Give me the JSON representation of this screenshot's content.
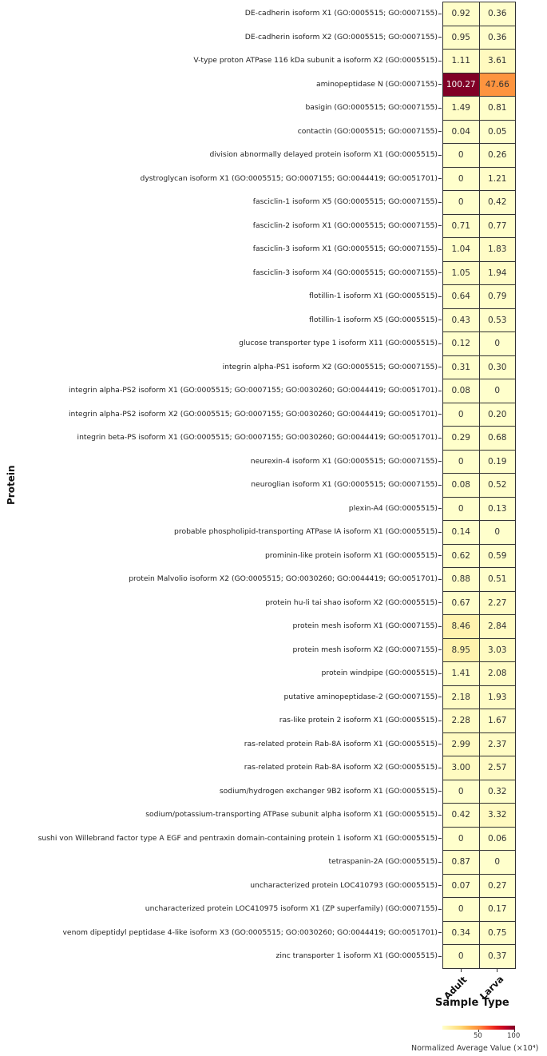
{
  "chart_data": {
    "type": "heatmap",
    "title": "",
    "xlabel": "Sample Type",
    "ylabel": "Protein",
    "columns": [
      "Adult",
      "Larva"
    ],
    "rows": [
      {
        "protein": "DE-cadherin isoform X1 (GO:0005515; GO:0007155)",
        "values": [
          "0.92",
          "0.36"
        ]
      },
      {
        "protein": "DE-cadherin isoform X2 (GO:0005515; GO:0007155)",
        "values": [
          "0.95",
          "0.36"
        ]
      },
      {
        "protein": "V-type proton ATPase 116 kDa subunit a isoform X2 (GO:0005515)",
        "values": [
          "1.11",
          "3.61"
        ]
      },
      {
        "protein": "aminopeptidase N (GO:0007155)",
        "values": [
          "100.27",
          "47.66"
        ]
      },
      {
        "protein": "basigin (GO:0005515; GO:0007155)",
        "values": [
          "1.49",
          "0.81"
        ]
      },
      {
        "protein": "contactin (GO:0005515; GO:0007155)",
        "values": [
          "0.04",
          "0.05"
        ]
      },
      {
        "protein": "division abnormally delayed protein isoform X1 (GO:0005515)",
        "values": [
          "0",
          "0.26"
        ]
      },
      {
        "protein": "dystroglycan isoform X1 (GO:0005515; GO:0007155; GO:0044419; GO:0051701)",
        "values": [
          "0",
          "1.21"
        ]
      },
      {
        "protein": "fasciclin-1 isoform X5 (GO:0005515; GO:0007155)",
        "values": [
          "0",
          "0.42"
        ]
      },
      {
        "protein": "fasciclin-2 isoform X1 (GO:0005515; GO:0007155)",
        "values": [
          "0.71",
          "0.77"
        ]
      },
      {
        "protein": "fasciclin-3 isoform X1 (GO:0005515; GO:0007155)",
        "values": [
          "1.04",
          "1.83"
        ]
      },
      {
        "protein": "fasciclin-3 isoform X4 (GO:0005515; GO:0007155)",
        "values": [
          "1.05",
          "1.94"
        ]
      },
      {
        "protein": "flotillin-1 isoform X1 (GO:0005515)",
        "values": [
          "0.64",
          "0.79"
        ]
      },
      {
        "protein": "flotillin-1 isoform X5 (GO:0005515)",
        "values": [
          "0.43",
          "0.53"
        ]
      },
      {
        "protein": "glucose transporter type 1 isoform X11 (GO:0005515)",
        "values": [
          "0.12",
          "0"
        ]
      },
      {
        "protein": "integrin alpha-PS1 isoform X2 (GO:0005515; GO:0007155)",
        "values": [
          "0.31",
          "0.30"
        ]
      },
      {
        "protein": "integrin alpha-PS2 isoform X1 (GO:0005515; GO:0007155; GO:0030260; GO:0044419; GO:0051701)",
        "values": [
          "0.08",
          "0"
        ]
      },
      {
        "protein": "integrin alpha-PS2 isoform X2 (GO:0005515; GO:0007155; GO:0030260; GO:0044419; GO:0051701)",
        "values": [
          "0",
          "0.20"
        ]
      },
      {
        "protein": "integrin beta-PS isoform X1 (GO:0005515; GO:0007155; GO:0030260; GO:0044419; GO:0051701)",
        "values": [
          "0.29",
          "0.68"
        ]
      },
      {
        "protein": "neurexin-4 isoform X1 (GO:0005515; GO:0007155)",
        "values": [
          "0",
          "0.19"
        ]
      },
      {
        "protein": "neuroglian isoform X1 (GO:0005515; GO:0007155)",
        "values": [
          "0.08",
          "0.52"
        ]
      },
      {
        "protein": "plexin-A4 (GO:0005515)",
        "values": [
          "0",
          "0.13"
        ]
      },
      {
        "protein": "probable phospholipid-transporting ATPase IA isoform X1 (GO:0005515)",
        "values": [
          "0.14",
          "0"
        ]
      },
      {
        "protein": "prominin-like protein isoform X1 (GO:0005515)",
        "values": [
          "0.62",
          "0.59"
        ]
      },
      {
        "protein": "protein Malvolio isoform X2 (GO:0005515; GO:0030260; GO:0044419; GO:0051701)",
        "values": [
          "0.88",
          "0.51"
        ]
      },
      {
        "protein": "protein hu-li tai shao isoform X2 (GO:0005515)",
        "values": [
          "0.67",
          "2.27"
        ]
      },
      {
        "protein": "protein mesh isoform X1 (GO:0007155)",
        "values": [
          "8.46",
          "2.84"
        ]
      },
      {
        "protein": "protein mesh isoform X2 (GO:0007155)",
        "values": [
          "8.95",
          "3.03"
        ]
      },
      {
        "protein": "protein windpipe (GO:0005515)",
        "values": [
          "1.41",
          "2.08"
        ]
      },
      {
        "protein": "putative aminopeptidase-2 (GO:0007155)",
        "values": [
          "2.18",
          "1.93"
        ]
      },
      {
        "protein": "ras-like protein 2 isoform X1 (GO:0005515)",
        "values": [
          "2.28",
          "1.67"
        ]
      },
      {
        "protein": "ras-related protein Rab-8A isoform X1 (GO:0005515)",
        "values": [
          "2.99",
          "2.37"
        ]
      },
      {
        "protein": "ras-related protein Rab-8A isoform X2 (GO:0005515)",
        "values": [
          "3.00",
          "2.57"
        ]
      },
      {
        "protein": "sodium/hydrogen exchanger 9B2 isoform X1 (GO:0005515)",
        "values": [
          "0",
          "0.32"
        ]
      },
      {
        "protein": "sodium/potassium-transporting ATPase subunit alpha isoform X1 (GO:0005515)",
        "values": [
          "0.42",
          "3.32"
        ]
      },
      {
        "protein": "sushi  von Willebrand factor type A  EGF and pentraxin domain-containing protein 1 isoform X1 (GO:0005515)",
        "values": [
          "0",
          "0.06"
        ]
      },
      {
        "protein": "tetraspanin-2A (GO:0005515)",
        "values": [
          "0.87",
          "0"
        ]
      },
      {
        "protein": "uncharacterized protein LOC410793 (GO:0005515)",
        "values": [
          "0.07",
          "0.27"
        ]
      },
      {
        "protein": "uncharacterized protein LOC410975 isoform X1 (ZP superfamily) (GO:0007155)",
        "values": [
          "0",
          "0.17"
        ]
      },
      {
        "protein": "venom dipeptidyl peptidase 4-like isoform X3 (GO:0005515; GO:0030260; GO:0044419; GO:0051701)",
        "values": [
          "0.34",
          "0.75"
        ]
      },
      {
        "protein": "zinc transporter 1 isoform X1 (GO:0005515)",
        "values": [
          "0",
          "0.37"
        ]
      }
    ],
    "colorbar": {
      "label": "Normalized Average Value (×10⁴)",
      "ticks": [
        "50",
        "100"
      ],
      "range": [
        0,
        100
      ],
      "colormap": "YlOrRd",
      "orientation": "horizontal",
      "position": "bottom"
    },
    "grid": false,
    "annotations": true
  }
}
